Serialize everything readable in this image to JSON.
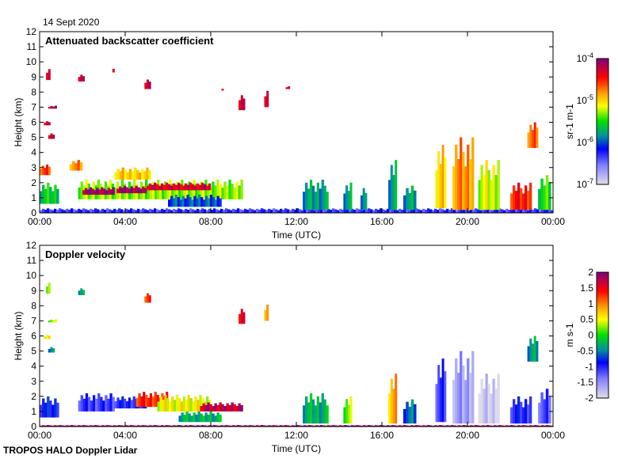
{
  "header": {
    "date": "14 Sept 2020"
  },
  "footer": {
    "instrument": "TROPOS HALO Doppler Lidar"
  },
  "chart_data": [
    {
      "type": "heatmap",
      "title": "Attenuated backscatter coefficient",
      "xlabel": "Time (UTC)",
      "ylabel": "Height (km)",
      "xlim": [
        0,
        24
      ],
      "ylim": [
        0,
        12
      ],
      "xticks": [
        "00:00",
        "04:00",
        "08:00",
        "12:00",
        "16:00",
        "20:00",
        "00:00"
      ],
      "yticks": [
        "0",
        "1",
        "2",
        "3",
        "4",
        "5",
        "6",
        "7",
        "8",
        "9",
        "10",
        "11",
        "12"
      ],
      "colorbar": {
        "label": "sr-1 m-1",
        "scale": "log",
        "range": [
          1e-07,
          0.0001
        ],
        "ticks": [
          "10-7",
          "10-6",
          "10-5",
          "10-4"
        ]
      },
      "features_log10": [
        {
          "t": [
            0,
            24
          ],
          "h": [
            0,
            0.3
          ],
          "v": -6.3
        },
        {
          "t": [
            0,
            0.9
          ],
          "h": [
            0.6,
            2.0
          ],
          "v": -5.6
        },
        {
          "t": [
            0,
            0.5
          ],
          "h": [
            2.5,
            3.2
          ],
          "v": -4.6
        },
        {
          "t": [
            0.2,
            0.5
          ],
          "h": [
            5.8,
            6.1
          ],
          "v": -4.2
        },
        {
          "t": [
            0.4,
            0.7
          ],
          "h": [
            4.9,
            5.3
          ],
          "v": -4.2
        },
        {
          "t": [
            0.4,
            0.8
          ],
          "h": [
            6.9,
            7.1
          ],
          "v": -4.2
        },
        {
          "t": [
            0.3,
            0.5
          ],
          "h": [
            8.8,
            9.6
          ],
          "v": -4.2
        },
        {
          "t": [
            1.8,
            2.1
          ],
          "h": [
            8.7,
            9.2
          ],
          "v": -4.2
        },
        {
          "t": [
            3.4,
            3.5
          ],
          "h": [
            9.3,
            9.7
          ],
          "v": -4.2
        },
        {
          "t": [
            4.9,
            5.2
          ],
          "h": [
            8.2,
            8.9
          ],
          "v": -4.2
        },
        {
          "t": [
            8.5,
            8.6
          ],
          "h": [
            8.1,
            8.3
          ],
          "v": -4.2
        },
        {
          "t": [
            9.3,
            9.6
          ],
          "h": [
            6.8,
            7.9
          ],
          "v": -4.2
        },
        {
          "t": [
            10.5,
            10.7
          ],
          "h": [
            7.0,
            8.2
          ],
          "v": -4.2
        },
        {
          "t": [
            11.5,
            11.7
          ],
          "h": [
            8.2,
            8.4
          ],
          "v": -4.2
        },
        {
          "t": [
            1.4,
            2.0
          ],
          "h": [
            2.8,
            3.5
          ],
          "v": -4.8
        },
        {
          "t": [
            1.8,
            9.5
          ],
          "h": [
            0.9,
            2.2
          ],
          "v": -5.3
        },
        {
          "t": [
            2.0,
            3.5
          ],
          "h": [
            1.2,
            1.7
          ],
          "v": -4.1
        },
        {
          "t": [
            3.6,
            5.0
          ],
          "h": [
            1.3,
            1.8
          ],
          "v": -4.1
        },
        {
          "t": [
            5.0,
            8.0
          ],
          "h": [
            1.5,
            2.0
          ],
          "v": -4.3
        },
        {
          "t": [
            6.0,
            8.5
          ],
          "h": [
            0.4,
            1.2
          ],
          "v": -6.0
        },
        {
          "t": [
            3.5,
            5.2
          ],
          "h": [
            2.2,
            3.0
          ],
          "v": -5.0
        },
        {
          "t": [
            12.3,
            13.5
          ],
          "h": [
            0.2,
            2.2
          ],
          "v": -5.8
        },
        {
          "t": [
            14.2,
            14.6
          ],
          "h": [
            0.2,
            2.0
          ],
          "v": -5.8
        },
        {
          "t": [
            15.0,
            15.3
          ],
          "h": [
            0.2,
            1.8
          ],
          "v": -5.8
        },
        {
          "t": [
            16.3,
            16.7
          ],
          "h": [
            0.2,
            3.5
          ],
          "v": -5.8
        },
        {
          "t": [
            17.0,
            17.6
          ],
          "h": [
            0.2,
            1.8
          ],
          "v": -5.8
        },
        {
          "t": [
            18.5,
            19.0
          ],
          "h": [
            0.3,
            4.5
          ],
          "v": -5.0
        },
        {
          "t": [
            19.3,
            20.3
          ],
          "h": [
            0.2,
            5.0
          ],
          "v": -4.8
        },
        {
          "t": [
            20.5,
            21.5
          ],
          "h": [
            0.2,
            3.5
          ],
          "v": -5.2
        },
        {
          "t": [
            22.0,
            23.0
          ],
          "h": [
            0.2,
            2.0
          ],
          "v": -4.5
        },
        {
          "t": [
            22.8,
            23.3
          ],
          "h": [
            4.3,
            6.0
          ],
          "v": -4.7
        },
        {
          "t": [
            23.3,
            23.9
          ],
          "h": [
            0.2,
            2.5
          ],
          "v": -5.5
        }
      ]
    },
    {
      "type": "heatmap",
      "title": "Doppler velocity",
      "xlabel": "Time (UTC)",
      "ylabel": "Height (km)",
      "xlim": [
        0,
        24
      ],
      "ylim": [
        0,
        12
      ],
      "xticks": [
        "00:00",
        "04:00",
        "08:00",
        "12:00",
        "16:00",
        "20:00",
        "00:00"
      ],
      "yticks": [
        "0",
        "1",
        "2",
        "3",
        "4",
        "5",
        "6",
        "7",
        "8",
        "9",
        "10",
        "11",
        "12"
      ],
      "colorbar": {
        "label": "m s-1",
        "scale": "linear",
        "range": [
          -2,
          2
        ],
        "ticks": [
          "-2",
          "-1.5",
          "-1",
          "-0.5",
          "0",
          "0.5",
          "1",
          "1.5",
          "2"
        ]
      },
      "features": [
        {
          "t": [
            0,
            24
          ],
          "h": [
            0,
            0.1
          ],
          "v": 1.9
        },
        {
          "t": [
            0,
            0.9
          ],
          "h": [
            0.6,
            2.0
          ],
          "v": -0.9
        },
        {
          "t": [
            0.2,
            0.5
          ],
          "h": [
            5.8,
            6.1
          ],
          "v": 0.6
        },
        {
          "t": [
            0.4,
            0.7
          ],
          "h": [
            4.9,
            5.3
          ],
          "v": -0.4
        },
        {
          "t": [
            0.4,
            0.8
          ],
          "h": [
            6.9,
            7.1
          ],
          "v": 0.3
        },
        {
          "t": [
            0.3,
            0.5
          ],
          "h": [
            8.8,
            9.6
          ],
          "v": 0.4
        },
        {
          "t": [
            1.8,
            2.1
          ],
          "h": [
            8.7,
            9.2
          ],
          "v": -0.3
        },
        {
          "t": [
            4.9,
            5.2
          ],
          "h": [
            8.2,
            8.9
          ],
          "v": 1.3
        },
        {
          "t": [
            9.3,
            9.6
          ],
          "h": [
            6.8,
            7.9
          ],
          "v": 1.6
        },
        {
          "t": [
            10.5,
            10.7
          ],
          "h": [
            7.0,
            8.2
          ],
          "v": 1.0
        },
        {
          "t": [
            1.8,
            3.5
          ],
          "h": [
            1.0,
            2.2
          ],
          "v": -1.1
        },
        {
          "t": [
            3.5,
            5.0
          ],
          "h": [
            1.2,
            2.0
          ],
          "v": -1.0
        },
        {
          "t": [
            4.5,
            6.0
          ],
          "h": [
            1.3,
            2.3
          ],
          "v": 1.3
        },
        {
          "t": [
            5.5,
            8.0
          ],
          "h": [
            1.0,
            2.1
          ],
          "v": 0.5
        },
        {
          "t": [
            7.5,
            9.5
          ],
          "h": [
            1.0,
            1.6
          ],
          "v": 1.7
        },
        {
          "t": [
            6.5,
            8.5
          ],
          "h": [
            0.3,
            1.0
          ],
          "v": -0.3
        },
        {
          "t": [
            12.3,
            13.5
          ],
          "h": [
            0.2,
            2.2
          ],
          "v": -0.3
        },
        {
          "t": [
            14.2,
            14.6
          ],
          "h": [
            0.2,
            2.0
          ],
          "v": 0.2
        },
        {
          "t": [
            16.3,
            16.7
          ],
          "h": [
            0.2,
            3.5
          ],
          "v": 0.8
        },
        {
          "t": [
            17.0,
            17.6
          ],
          "h": [
            0.2,
            1.8
          ],
          "v": -0.6
        },
        {
          "t": [
            18.5,
            19.0
          ],
          "h": [
            0.3,
            4.5
          ],
          "v": -1.1
        },
        {
          "t": [
            19.3,
            20.3
          ],
          "h": [
            0.2,
            5.0
          ],
          "v": -1.6
        },
        {
          "t": [
            20.5,
            21.5
          ],
          "h": [
            0.2,
            3.5
          ],
          "v": -1.9
        },
        {
          "t": [
            22.0,
            23.0
          ],
          "h": [
            0.2,
            2.0
          ],
          "v": -1.0
        },
        {
          "t": [
            22.8,
            23.3
          ],
          "h": [
            4.3,
            6.0
          ],
          "v": -0.4
        },
        {
          "t": [
            23.3,
            23.9
          ],
          "h": [
            0.2,
            2.5
          ],
          "v": -1.2
        }
      ]
    }
  ]
}
